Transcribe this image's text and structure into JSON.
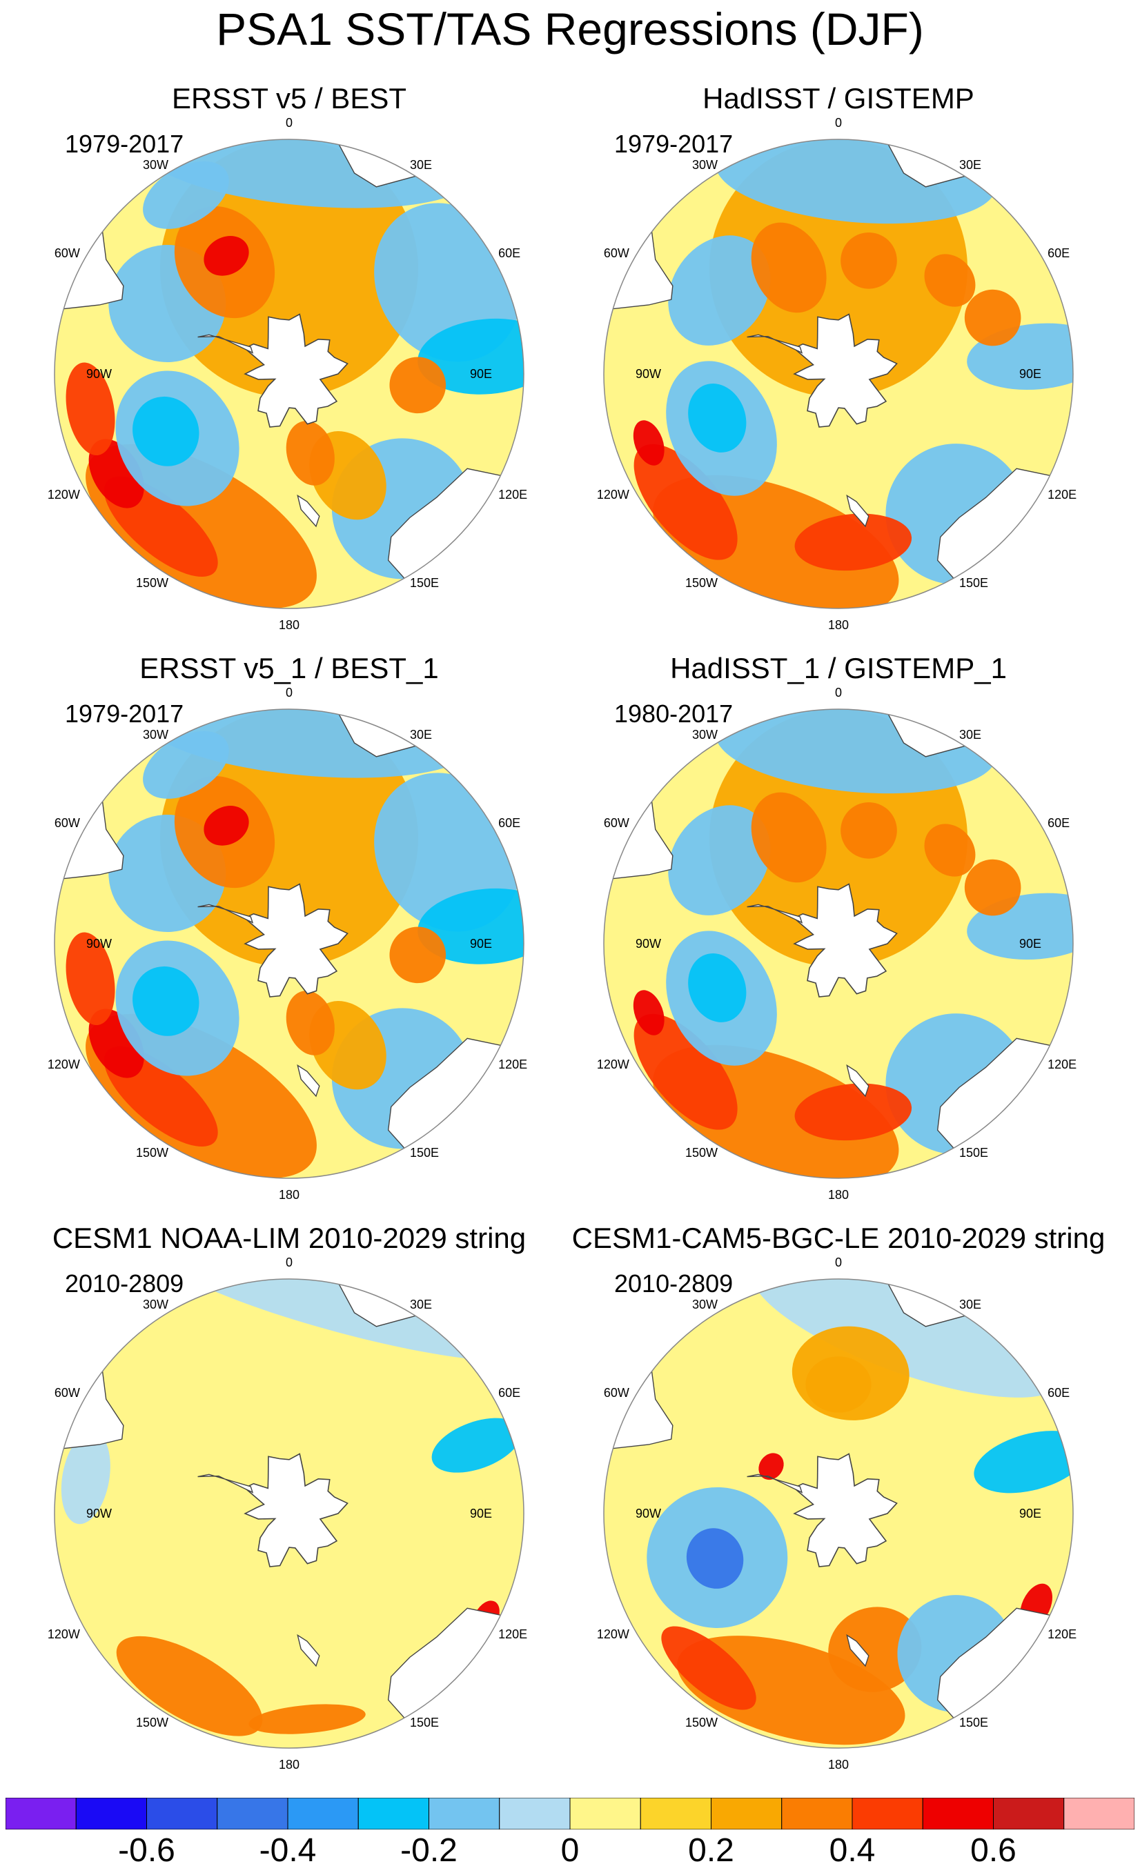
{
  "title": "PSA1 SST/TAS Regressions (DJF)",
  "lon_labels": [
    "0",
    "30E",
    "60E",
    "90E",
    "120E",
    "150E",
    "180",
    "150W",
    "120W",
    "90W",
    "60W",
    "30W"
  ],
  "panels": [
    {
      "title": "ERSST v5 / BEST",
      "period": "1979-2017",
      "pattern": "obs_smooth"
    },
    {
      "title": "HadISST / GISTEMP",
      "period": "1979-2017",
      "pattern": "obs_noisy"
    },
    {
      "title": "ERSST v5_1 / BEST_1",
      "period": "1979-2017",
      "pattern": "obs_smooth"
    },
    {
      "title": "HadISST_1 / GISTEMP_1",
      "period": "1980-2017",
      "pattern": "obs_noisy"
    },
    {
      "title": "CESM1 NOAA-LIM 2010-2029 string",
      "period": "2010-2809",
      "pattern": "lim"
    },
    {
      "title": "CESM1-CAM5-BGC-LE 2010-2029 string",
      "period": "2010-2809",
      "pattern": "le"
    }
  ],
  "colorbar": {
    "colors": [
      "#7a1ff0",
      "#1a0af5",
      "#2b4de8",
      "#3776e8",
      "#2b99f5",
      "#04c3f7",
      "#73c4f0",
      "#b2dcf2",
      "#fff68a",
      "#fcd42a",
      "#f9a802",
      "#fa7d02",
      "#fb3c02",
      "#ee0000",
      "#cb1b1b",
      "#ffb0b0"
    ],
    "labels": [
      "-0.6",
      "-0.4",
      "-0.2",
      "0",
      "0.2",
      "0.4",
      "0.6"
    ],
    "label_values": [
      -0.6,
      -0.4,
      -0.2,
      0,
      0.2,
      0.4,
      0.6
    ],
    "boundaries": [
      -0.7,
      -0.6,
      -0.5,
      -0.4,
      -0.3,
      -0.2,
      -0.1,
      -0.05,
      0.05,
      0.1,
      0.2,
      0.3,
      0.4,
      0.5,
      0.6,
      0.7
    ]
  },
  "colors": {
    "land": "#ffffff",
    "coast": "#444444",
    "border": "#888888"
  }
}
